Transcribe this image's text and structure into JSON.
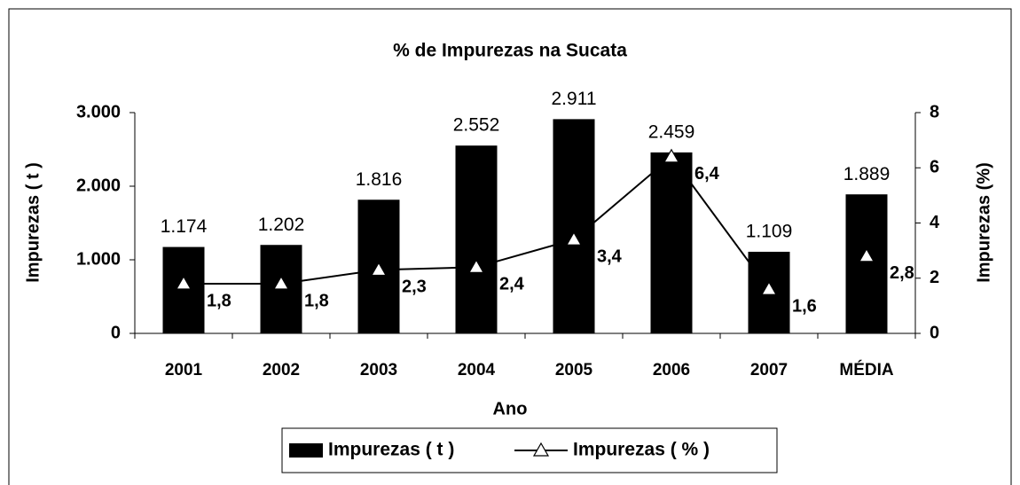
{
  "chart_data": {
    "type": "bar_line",
    "title": "% de Impurezas na Sucata",
    "x_label": "Ano",
    "y_label": "Impurezas ( t )",
    "y2_label": "Impurezas (%)",
    "categories": [
      "2001",
      "2002",
      "2003",
      "2004",
      "2005",
      "2006",
      "2007",
      "MÉDIA"
    ],
    "series": [
      {
        "name": "Impurezas ( t )",
        "kind": "bar",
        "color": "#000000",
        "values": [
          1174,
          1202,
          1816,
          2552,
          2911,
          2459,
          1109,
          1889
        ],
        "value_labels": [
          "1.174",
          "1.202",
          "1.816",
          "2.552",
          "2.911",
          "2.459",
          "1.109",
          "1.889"
        ]
      },
      {
        "name": "Impurezas ( % )",
        "kind": "line",
        "axis": "y2",
        "color": "#000000",
        "values": [
          1.8,
          1.8,
          2.3,
          2.4,
          3.4,
          6.4,
          1.6,
          2.8
        ],
        "value_labels": [
          "1,8",
          "1,8",
          "2,3",
          "2,4",
          "3,4",
          "6,4",
          "1,6",
          "2,8"
        ]
      }
    ],
    "ylim": [
      0,
      3000
    ],
    "yticks": [
      0,
      {
        "value": 1000,
        "label": "1.000"
      },
      {
        "value": 2000,
        "label": "2.000"
      },
      {
        "value": 3000,
        "label": "3.000"
      }
    ],
    "y2lim": [
      0,
      8
    ],
    "y2ticks": [
      0,
      2,
      4,
      6,
      8
    ],
    "grid": false,
    "legend": "bottom"
  }
}
